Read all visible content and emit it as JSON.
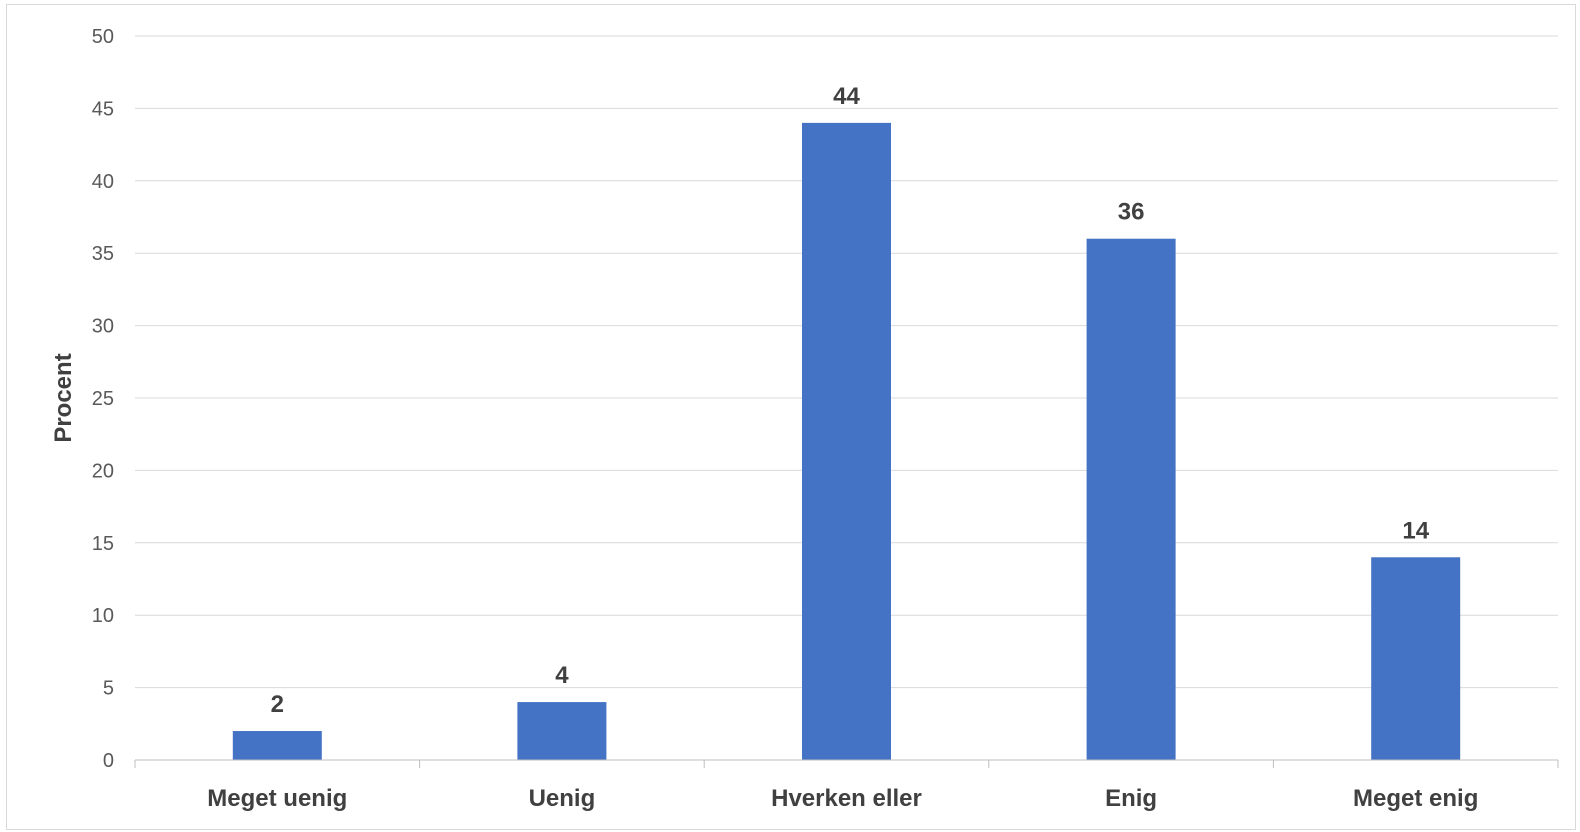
{
  "chart_data": {
    "type": "bar",
    "title": "",
    "xlabel": "",
    "ylabel": "Procent",
    "categories": [
      "Meget uenig",
      "Uenig",
      "Hverken eller",
      "Enig",
      "Meget enig"
    ],
    "values": [
      2,
      4,
      44,
      36,
      14
    ],
    "ylim": [
      0,
      50
    ],
    "yticks": [
      0,
      5,
      10,
      15,
      20,
      25,
      30,
      35,
      40,
      45,
      50
    ],
    "grid": true,
    "legend": "none",
    "bar_color": "#4472c4",
    "gridline_color": "#d9d9d9",
    "data_labels": true
  }
}
